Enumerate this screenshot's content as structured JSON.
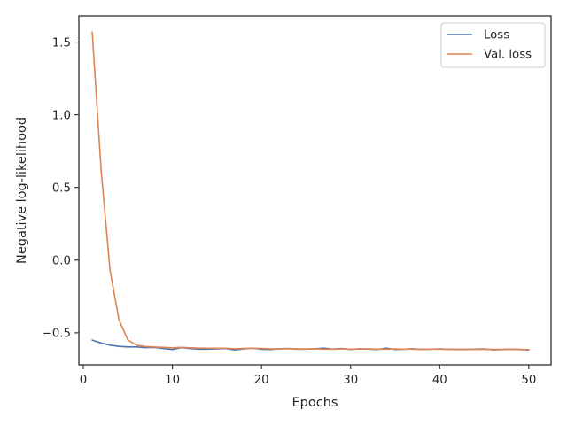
{
  "chart_data": {
    "type": "line",
    "xlabel": "Epochs",
    "ylabel": "Negative log-likelihood",
    "xlim": [
      -0.5,
      52.5
    ],
    "ylim": [
      -0.72,
      1.68
    ],
    "xticks": [
      0,
      10,
      20,
      30,
      40,
      50
    ],
    "xtick_labels": [
      "0",
      "10",
      "20",
      "30",
      "40",
      "50"
    ],
    "yticks": [
      -0.5,
      0.0,
      0.5,
      1.0,
      1.5
    ],
    "ytick_labels": [
      "−0.5",
      "0.0",
      "0.5",
      "1.0",
      "1.5"
    ],
    "grid": false,
    "legend_position": "top-right",
    "x": [
      1,
      2,
      3,
      4,
      5,
      6,
      7,
      8,
      9,
      10,
      11,
      12,
      13,
      14,
      15,
      16,
      17,
      18,
      19,
      20,
      21,
      22,
      23,
      24,
      25,
      26,
      27,
      28,
      29,
      30,
      31,
      32,
      33,
      34,
      35,
      36,
      37,
      38,
      39,
      40,
      41,
      42,
      43,
      44,
      45,
      46,
      47,
      48,
      49,
      50
    ],
    "series": [
      {
        "name": "Loss",
        "color": "#4c72b0",
        "values": [
          -0.55,
          -0.57,
          -0.585,
          -0.593,
          -0.597,
          -0.597,
          -0.602,
          -0.6,
          -0.608,
          -0.615,
          -0.602,
          -0.608,
          -0.612,
          -0.612,
          -0.61,
          -0.608,
          -0.618,
          -0.61,
          -0.605,
          -0.613,
          -0.615,
          -0.61,
          -0.608,
          -0.612,
          -0.612,
          -0.61,
          -0.605,
          -0.612,
          -0.608,
          -0.614,
          -0.61,
          -0.612,
          -0.615,
          -0.605,
          -0.615,
          -0.612,
          -0.61,
          -0.614,
          -0.612,
          -0.611,
          -0.613,
          -0.614,
          -0.614,
          -0.612,
          -0.611,
          -0.617,
          -0.615,
          -0.612,
          -0.615,
          -0.618
        ]
      },
      {
        "name": "Val. loss",
        "color": "#dd8452",
        "values": [
          1.57,
          0.62,
          -0.07,
          -0.41,
          -0.55,
          -0.585,
          -0.595,
          -0.598,
          -0.6,
          -0.603,
          -0.6,
          -0.603,
          -0.605,
          -0.606,
          -0.606,
          -0.606,
          -0.61,
          -0.608,
          -0.606,
          -0.608,
          -0.61,
          -0.611,
          -0.609,
          -0.611,
          -0.611,
          -0.61,
          -0.612,
          -0.612,
          -0.61,
          -0.613,
          -0.611,
          -0.611,
          -0.612,
          -0.612,
          -0.611,
          -0.612,
          -0.612,
          -0.613,
          -0.612,
          -0.612,
          -0.613,
          -0.613,
          -0.613,
          -0.614,
          -0.613,
          -0.614,
          -0.614,
          -0.612,
          -0.614,
          -0.615
        ]
      }
    ]
  }
}
